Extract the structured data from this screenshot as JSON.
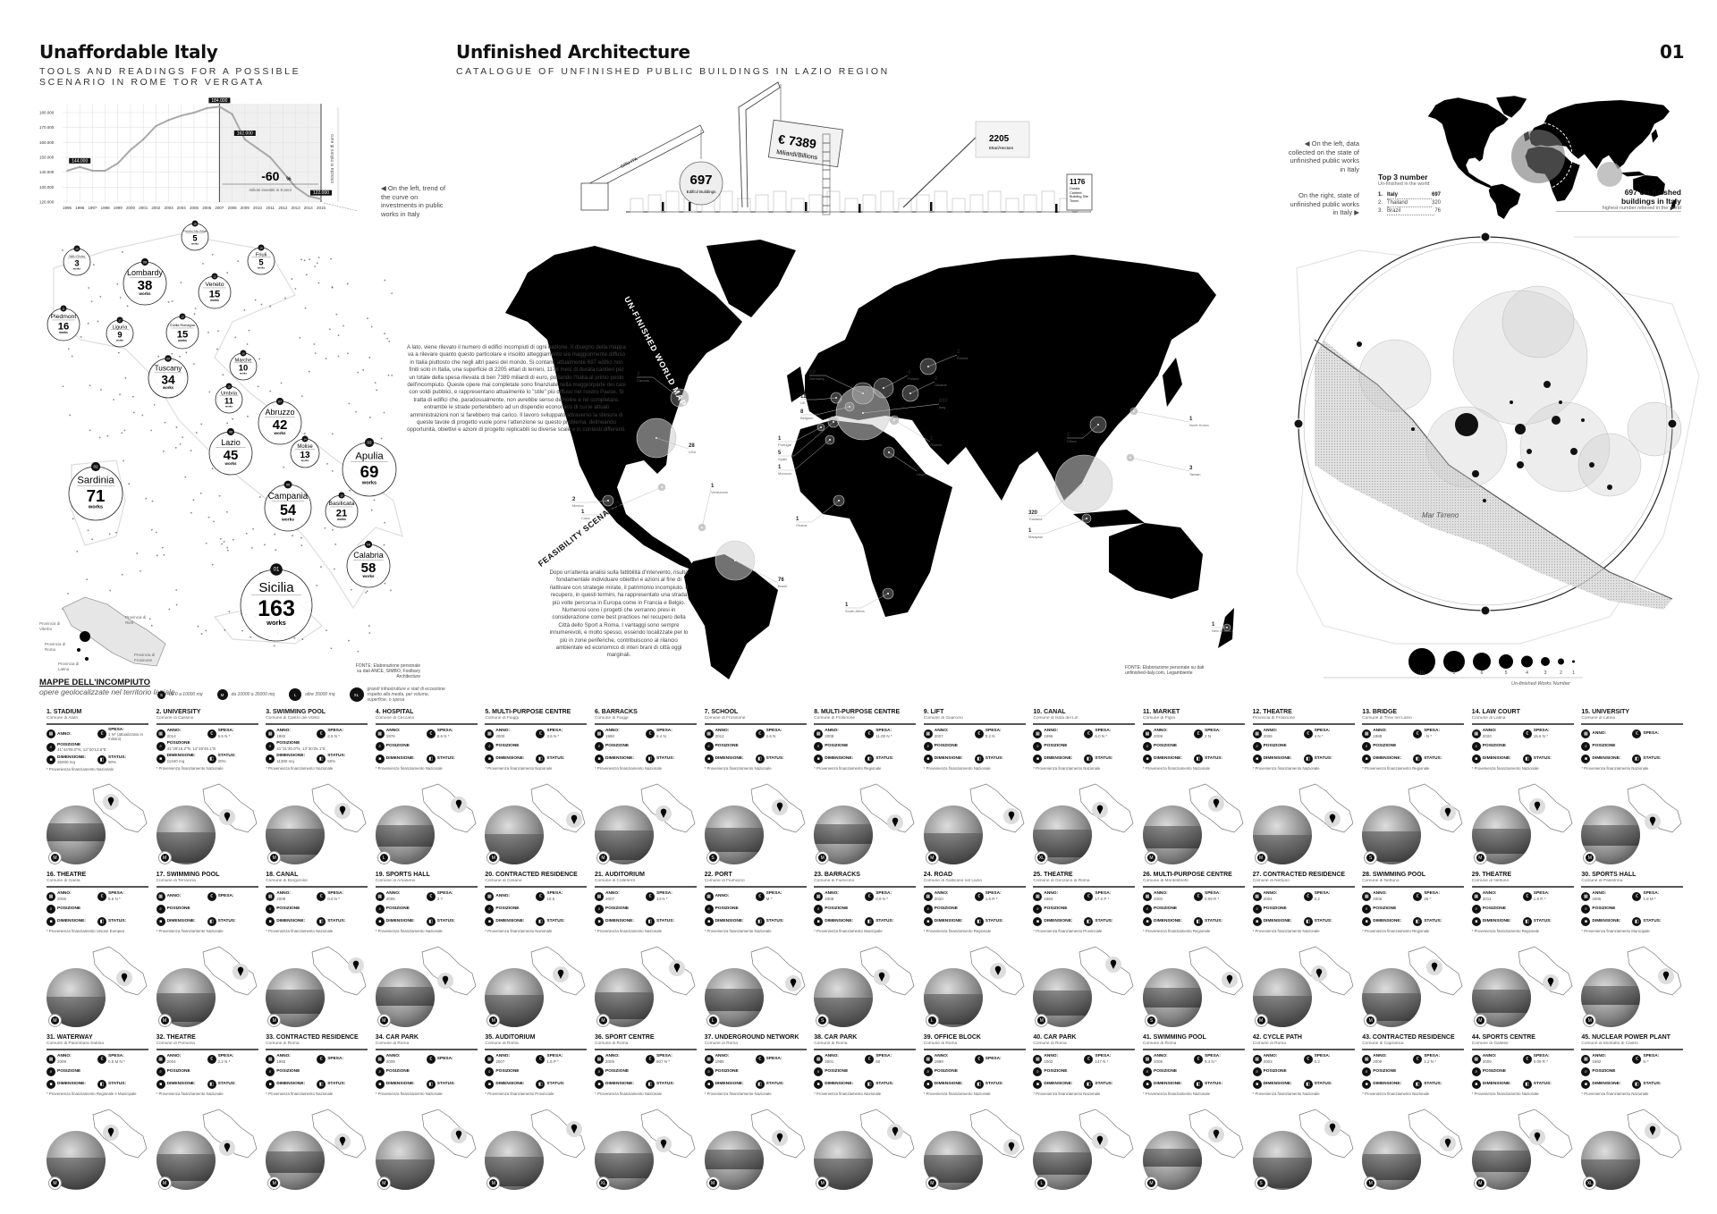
{
  "header": {
    "left_title": "Unaffordable Italy",
    "left_subtitle": "TOOLS AND READINGS FOR A POSSIBLE SCENARIO IN ROME TOR VERGATA",
    "center_title": "Unfinished Architecture",
    "center_subtitle": "CATALOGUE OF UNFINISHED PUBLIC BUILDINGS IN LAZIO REGION",
    "page_number": "01"
  },
  "chart_data": {
    "type": "line",
    "x": [
      1995,
      1996,
      1997,
      1998,
      1999,
      2000,
      2001,
      2002,
      2003,
      2004,
      2005,
      2006,
      2007,
      2008,
      2009,
      2010,
      2011,
      2012,
      2013,
      2014,
      2015
    ],
    "values": [
      141000,
      143500,
      141000,
      141000,
      146000,
      155000,
      162000,
      171000,
      175000,
      178000,
      180000,
      183000,
      184000,
      179000,
      162000,
      156000,
      150000,
      140000,
      130000,
      124000,
      122000
    ],
    "ylim": [
      120000,
      180000
    ],
    "y_ticks": [
      "120.000",
      "130.000",
      "140.000",
      "150.000",
      "160.000",
      "170.000",
      "180.000"
    ],
    "ylabel": "crescita in milioni di euro",
    "point_labels": [
      {
        "x": 1996,
        "label": "144.000"
      },
      {
        "x": 2007,
        "label": "184.000"
      },
      {
        "x": 2009,
        "label": "162.000"
      },
      {
        "x": 2015,
        "label": "122.000"
      }
    ],
    "annotation_value": "-60",
    "annotation_unit": "%",
    "annotation_text": "milioni investiti in 8 anni",
    "shaded_range": [
      2007,
      2015
    ],
    "grid": true,
    "line_color": "#aaaaaa"
  },
  "chart_note": "On the left, trend of the curve on investments in public works in Italy",
  "italy": {
    "works_label": "works",
    "regions": [
      {
        "rank": "20",
        "name": "Valle d'Aosta",
        "count": "3"
      },
      {
        "rank": "18",
        "name": "Trentino Alto-Adige",
        "count": "5"
      },
      {
        "rank": "19",
        "name": "Friuli",
        "count": "5"
      },
      {
        "rank": "08",
        "name": "Lombardy",
        "count": "38"
      },
      {
        "rank": "12",
        "name": "Veneto",
        "count": "15"
      },
      {
        "rank": "11",
        "name": "Piedmont",
        "count": "16"
      },
      {
        "rank": "17",
        "name": "Liguria",
        "count": "9"
      },
      {
        "rank": "13",
        "name": "Emilia Romagna",
        "count": "15"
      },
      {
        "rank": "09",
        "name": "Tuscany",
        "count": "34"
      },
      {
        "rank": "16",
        "name": "Marche",
        "count": "10"
      },
      {
        "rank": "15",
        "name": "Umbria",
        "count": "11"
      },
      {
        "rank": "07",
        "name": "Abruzzo",
        "count": "42"
      },
      {
        "rank": "06",
        "name": "Lazio",
        "count": "45"
      },
      {
        "rank": "14",
        "name": "Molise",
        "count": "13"
      },
      {
        "rank": "03",
        "name": "Apulia",
        "count": "69"
      },
      {
        "rank": "02",
        "name": "Sardinia",
        "count": "71"
      },
      {
        "rank": "05",
        "name": "Campania",
        "count": "54"
      },
      {
        "rank": "10",
        "name": "Basilicata",
        "count": "21"
      },
      {
        "rank": "04",
        "name": "Calabria",
        "count": "58"
      },
      {
        "rank": "01",
        "name": "Sicilia",
        "count": "163"
      }
    ],
    "lazio_provinces": [
      "Provincia di Viterbo",
      "Provincia di Rieti",
      "Provincia di Roma",
      "Provincia di Latina",
      "Provincia di Frosinone"
    ],
    "source": "FONTE: Elaborazione personale su dati ANCE, SIMBO, Foolbary Architecture"
  },
  "legend": {
    "title": "MAPPE DELL'INCOMPIUTO",
    "subtitle": "opere geolocalizzate nel territorio laziale.",
    "sizes": [
      {
        "badge": "S",
        "text": "da 0 a 10000 mq"
      },
      {
        "badge": "M",
        "text": "da 10000 a 35000 mq"
      },
      {
        "badge": "L",
        "text": "oltre 35000 mq"
      },
      {
        "badge": "XL",
        "text": "grandi infrastrutture e stati di eccezione rispetto alla media, per volume, superficie, o spesa"
      }
    ]
  },
  "construction": {
    "crane_label": "GRU-ITA",
    "buildings_value": "697",
    "buildings_label": "Edifici/ Buildings",
    "cost_value": "€ 7389",
    "cost_label": "Miliardi/Billions",
    "area_value": "2205",
    "area_label": "Ettari/Hectars",
    "duration_value": "1176",
    "duration_label": "Durata Cantieri/ Building Site Times"
  },
  "world_map": {
    "title": "UN-FINISHED WORLD MAP",
    "intro": "A lato, viene rilevato il numero di edifici incompiuti di ogni nazione. Il disegno della mappa va a rilevare quanto questo particolare e insolito atteggiamento sia maggiormente diffuso in Italia piuttosto che negli altri paesi del mondo. Si contano attualmente 697 edifici non finiti solo in Italia, una superficie di 2205 ettari di terreni, 1176 mesi di durata cantieri per un totale della spesa rilevata di ben 7389 miliardi di euro, portando l'Italia al primo posto dell'incompiuto. Queste opere mai completate sono finanziate nella maggiorparte dei casi con soldi pubblici, e rappresentano attualmente lo \"stile\" più diffuso nel nostro Paese. Si tratta di edifici che, paradossalmente, non avrebbe senso demolire e né completare, entrambe le strade porterebbero ad un dispendio economico di cui le attuali amministrazioni non si farebbero mai carico. Il lavoro sviluppato attraverso la stesura di queste tavole di progetto vuole porre l'attenzione su questo problema, delineando opportunità, obiettivi e azioni di progetto replicabili su diverse scale e in contesti differenti.",
    "feasibility_title": "FEASIBILITY SCENARIO",
    "feasibility_text": "Dopo un'attenta analisi sulla fattibilità d'intervento, risulta fondamentale individuare obiettivi e azioni al fine di riattivare con strategie mirate, il patrimonio incompiuto. Il recupero, in questi termini, ha rappresentato una strada più volte percorsa in Europa come in Francia e Belgio. Numerosi sono i progetti che verranno presi in considerazione come best practices nel recupero della Città dello Sport a Roma. I vantaggi sono sempre innumerevoli, e molto spesso, essendo localizzate per lo più in zone periferiche, contribuiscono al rilancio ambientale ed economico di interi brani di città oggi marginali.",
    "countries": [
      {
        "name": "Canada",
        "count": "3"
      },
      {
        "name": "USA",
        "count": "28"
      },
      {
        "name": "Mexico",
        "count": "2"
      },
      {
        "name": "Cuba",
        "count": "1"
      },
      {
        "name": "Venezuela",
        "count": "1"
      },
      {
        "name": "Brazil",
        "count": "76"
      },
      {
        "name": "Germany",
        "count": "10"
      },
      {
        "name": "UK",
        "count": "11"
      },
      {
        "name": "Belgium",
        "count": "8"
      },
      {
        "name": "Portugal",
        "count": "1"
      },
      {
        "name": "Spain",
        "count": "5"
      },
      {
        "name": "Morocco",
        "count": "1"
      },
      {
        "name": "Ghana",
        "count": "1"
      },
      {
        "name": "South Africa",
        "count": "1"
      },
      {
        "name": "Russia",
        "count": "2"
      },
      {
        "name": "Poland",
        "count": "4"
      },
      {
        "name": "Ukraine",
        "count": "2"
      },
      {
        "name": "Italy",
        "count": "697"
      },
      {
        "name": "Greece",
        "count": "1"
      },
      {
        "name": "Libya",
        "count": "1"
      },
      {
        "name": "China",
        "count": "1"
      },
      {
        "name": "North Korea",
        "count": "1"
      },
      {
        "name": "Taiwan",
        "count": "3"
      },
      {
        "name": "Thailand",
        "count": "320"
      },
      {
        "name": "Malaysia",
        "count": "1"
      },
      {
        "name": "New Zealand",
        "count": "1"
      }
    ],
    "source": "FONTE: Elaborazione personale su dati unfinished-italy.com, Legambiente"
  },
  "right_panel": {
    "left_note": "On the left, data collected on the state of unfinished public works in Italy",
    "right_note": "On the right, state of unfinished public works in Italy",
    "top3_title": "Top 3 number",
    "top3_subtitle": "Un-finished in the world",
    "top3": [
      {
        "rank": "1.",
        "country": "Italy",
        "value": "697"
      },
      {
        "rank": "2.",
        "country": "Thailand",
        "value": "320"
      },
      {
        "rank": "3.",
        "country": "Brazil",
        "value": "76"
      }
    ],
    "highlight_title": "697 Un-finished buildings in Italy",
    "highlight_sub": "highest number relieved in the world",
    "sea_label": "Mar Tirreno",
    "scale_values": [
      "10",
      "8",
      "6",
      "5",
      "4",
      "3",
      "2",
      "1"
    ],
    "scale_label": "Un-finished Works Number"
  },
  "card_labels": {
    "anno": "ANNO:",
    "spesa": "SPESA:",
    "posizione": "POSIZIONE",
    "dimensione": "DIMENSIONE:",
    "status": "STATUS:"
  },
  "cards": [
    {
      "title": "1. STADIUM",
      "comune": "Comune di Alatri",
      "anno": "",
      "spesa": "1 N* (attualizzato in milioni)",
      "posizione": "41°44'09.0\"N, 13°20'13.6\"E",
      "dimensione": "35000 mq",
      "status": "90%",
      "note": "* Provenienza finanziamento Nazionale",
      "size": "M"
    },
    {
      "title": "2. UNIVERSITY",
      "comune": "Comune di Cassino",
      "anno": "2014",
      "spesa": "6.5 N *",
      "posizione": "41°28'16.2\"N, 13°49'45.1\"E",
      "dimensione": "11340 mq",
      "status": "20%",
      "note": "* Provenienza finanziamento Nazionale",
      "size": "M"
    },
    {
      "title": "3. SWIMMING POOL",
      "comune": "Comune di Castro dei Volsci",
      "anno": "1992",
      "spesa": "2.5 N *",
      "posizione": "41°31'30.0\"N, 13°30'26.1\"E",
      "dimensione": "11380 mq",
      "status": "50%",
      "note": "* Provenienza finanziamento Nazionale",
      "size": "M"
    },
    {
      "title": "4. HOSPITAL",
      "comune": "Comune di Ceccano",
      "anno": "1976",
      "spesa": "8.6 N *",
      "note": "* Provenienza finanziamento Nazionale",
      "size": "L"
    },
    {
      "title": "5. MULTI-PURPOSE CENTRE",
      "comune": "Comune di Fiuggi",
      "anno": "2000",
      "spesa": "3.6 N *",
      "note": "* Provenienza finanziamento Nazionale",
      "size": "M"
    },
    {
      "title": "6. BARRACKS",
      "comune": "Comune di Fiuggi",
      "anno": "1990",
      "spesa": "8.4 N",
      "note": "* Provenienza finanziamento Nazionale",
      "size": "M"
    },
    {
      "title": "7. SCHOOL",
      "comune": "Comune di Frosinone",
      "anno": "2012",
      "spesa": "2.6 N",
      "note": "* Provenienza finanziamento Nazionale",
      "size": "S"
    },
    {
      "title": "8. MULTI-PURPOSE CENTRE",
      "comune": "Comune di Frosinone",
      "anno": "2008",
      "spesa": "11.00 N *",
      "note": "* Provenienza finanziamento Regionale",
      "size": "M"
    },
    {
      "title": "9. LIFT",
      "comune": "Comune di Guarcino",
      "anno": "2007",
      "spesa": "0.2 N",
      "note": "* Provenienza finanziamento Nazionale",
      "size": "M"
    },
    {
      "title": "10. CANAL",
      "comune": "Comune di Isola del Liri",
      "anno": "1996",
      "spesa": "6.0 N *",
      "note": "* Provenienza finanziamento Nazionale",
      "size": "XL"
    },
    {
      "title": "11. MARKET",
      "comune": "Comune di Piglio",
      "anno": "2009",
      "spesa": "2 N",
      "note": "* Provenienza finanziamento Nazionale",
      "size": "M"
    },
    {
      "title": "12. THEATRE",
      "comune": "Provincia di Frosinone",
      "anno": "2006",
      "spesa": "4 N *",
      "note": "* Provenienza finanziamento Nazionale",
      "size": "M"
    },
    {
      "title": "13. BRIDGE",
      "comune": "Comune di Trevi nel Lazio",
      "anno": "1988",
      "spesa": "- N *",
      "note": "* Provenienza finanziamento Regionale",
      "size": "S"
    },
    {
      "title": "14. LAW COURT",
      "comune": "Comune di Latina",
      "anno": "2020",
      "spesa": "15.6 N *",
      "note": "* Provenienza finanziamento Nazionale",
      "size": "M"
    },
    {
      "title": "15. UNIVERSITY",
      "comune": "Comune di Latina",
      "anno": "",
      "spesa": "",
      "note": "* Provenienza finanziamento Nazionale",
      "size": "M"
    },
    {
      "title": "16. THEATRE",
      "comune": "Comune di Gaeta",
      "anno": "2006",
      "spesa": "5.6 N *",
      "note": "* Provenienza finanziamento Unione Europea",
      "size": "M"
    },
    {
      "title": "17. SWIMMING POOL",
      "comune": "Comune di Terracina",
      "anno": "",
      "spesa": "",
      "note": "* Provenienza finanziamento Nazionale",
      "size": "M"
    },
    {
      "title": "18. CANAL",
      "comune": "Comune di Borgorose",
      "anno": "2009",
      "spesa": "0.0 N *",
      "note": "* Provenienza finanziamento Nazionale",
      "size": "M"
    },
    {
      "title": "19. SPORTS HALL",
      "comune": "Comune di Amaseno",
      "anno": "2006",
      "spesa": "3 ?",
      "note": "* Provenienza finanziamento Nazionale",
      "size": "M"
    },
    {
      "title": "20. CONTRACTED RESIDENCE",
      "comune": "Comune di Cesano",
      "anno": "",
      "spesa": "10.5",
      "note": "* Provenienza finanziamento Nazionale",
      "size": "M"
    },
    {
      "title": "21. AUDITORIUM",
      "comune": "Comune di Colleferro",
      "anno": "2007",
      "spesa": "14 N *",
      "note": "* Provenienza finanziamento Nazionale",
      "size": "M"
    },
    {
      "title": "22. PORT",
      "comune": "Comune di Fiumicino",
      "anno": "",
      "spesa": "M *",
      "note": "* Provenienza finanziamento Nazionale",
      "size": "L"
    },
    {
      "title": "23. BARRACKS",
      "comune": "Comune di Fiumicino",
      "anno": "2008",
      "spesa": "0.9 N *",
      "note": "* Provenienza finanziamento Municipale",
      "size": "S"
    },
    {
      "title": "24. ROAD",
      "comune": "Comune di Gallicano nel Lazio",
      "anno": "2010",
      "spesa": "1.6 R *",
      "note": "* Provenienza finanziamento Regionale",
      "size": "L"
    },
    {
      "title": "25. THEATRE",
      "comune": "Comune di Genzano di Roma",
      "anno": "1984",
      "spesa": "17.0 P *",
      "note": "* Provenienza finanziamento Provinciale",
      "size": "M"
    },
    {
      "title": "26. MULTI-PURPOSE CENTRE",
      "comune": "Comune di Montelibretti",
      "anno": "2000",
      "spesa": "0.09 R *",
      "note": "* Provenienza finanziamento Regionale",
      "size": "S"
    },
    {
      "title": "27. CONTRACTED RESIDENCE",
      "comune": "Comune di Nettuno",
      "anno": "2004",
      "spesa": "0.2",
      "note": "* Provenienza finanziamento Nazionale",
      "size": "M"
    },
    {
      "title": "28. SWIMMING POOL",
      "comune": "Comune di Nettuno",
      "anno": "2006",
      "spesa": "26 *",
      "note": "* Provenienza finanziamento Regionale",
      "size": "M"
    },
    {
      "title": "29. THEATRE",
      "comune": "Comune di Nettuno",
      "anno": "2011",
      "spesa": "1.8 R *",
      "note": "* Provenienza finanziamento Regionale",
      "size": "M"
    },
    {
      "title": "30. SPORTS HALL",
      "comune": "Comune di Palestrina",
      "anno": "2005",
      "spesa": "1.8 M *",
      "note": "* Provenienza finanziamento Municipale",
      "size": "M"
    },
    {
      "title": "31. WATERWAY",
      "comune": "Comune di Palombara Sabina",
      "anno": "2009",
      "spesa": "0.5 M N *",
      "note": "* Provenienza finanziamento Regionale e Municipale",
      "size": "M"
    },
    {
      "title": "32. THEATRE",
      "comune": "Comune di Pomezia",
      "anno": "2004",
      "spesa": "2.2 N *",
      "note": "* Provenienza finanziamento Nazionale",
      "size": "M"
    },
    {
      "title": "33. CONTRACTED RESIDENCE",
      "comune": "Comune di Roma",
      "anno": "1992",
      "spesa": "",
      "note": "* Provenienza finanziamento Nazionale",
      "size": "M"
    },
    {
      "title": "34. CAR PARK",
      "comune": "Comune di Roma",
      "anno": "2008",
      "spesa": "",
      "note": "* Provenienza finanziamento Nazionale",
      "size": "M"
    },
    {
      "title": "35. AUDITORIUM",
      "comune": "Comune di Roma",
      "anno": "2007",
      "spesa": "1.5 P *",
      "note": "* Provenienza finanziamento Provinciale",
      "size": "M"
    },
    {
      "title": "36. SPORT CENTRE",
      "comune": "Comune di Roma",
      "anno": "2005",
      "spesa": "607 N *",
      "note": "* Provenienza finanziamento Nazionale",
      "size": "XL"
    },
    {
      "title": "37. UNDERGROUND NETWORK",
      "comune": "Comune di Roma",
      "anno": "1995",
      "spesa": "",
      "note": "* Provenienza finanziamento Nazionale",
      "size": "M"
    },
    {
      "title": "38. CAR PARK",
      "comune": "Comune di Roma",
      "anno": "2001",
      "spesa": "50",
      "note": "* Provenienza finanziamento Nazionale",
      "size": "M"
    },
    {
      "title": "39. OFFICE BLOCK",
      "comune": "Comune di Roma",
      "anno": "1999",
      "spesa": "",
      "note": "* Provenienza finanziamento Nazionale",
      "size": "M"
    },
    {
      "title": "40. CAR PARK",
      "comune": "Comune di Roma",
      "anno": "2002",
      "spesa": "147 N *",
      "note": "* Provenienza finanziamento Nazionale",
      "size": "L"
    },
    {
      "title": "41. SWIMMING POOL",
      "comune": "Comune di Roma",
      "anno": "2009",
      "spesa": "6.4 N *",
      "note": "* Provenienza finanziamento Nazionale",
      "size": "M"
    },
    {
      "title": "42. CYCLE PATH",
      "comune": "Comune di Roma",
      "anno": "2003",
      "spesa": "0.2",
      "note": "* Provenienza finanziamento Nazionale",
      "size": "S"
    },
    {
      "title": "43. CONTRACTED RESIDENCE",
      "comune": "Comune di Capranica",
      "anno": "2009",
      "spesa": "1.2 N *",
      "note": "* Provenienza finanziamento Nazionale",
      "size": "M"
    },
    {
      "title": "44. SPORTS CENTRE",
      "comune": "Comune di Gallese",
      "anno": "2009",
      "spesa": "0.09 R *",
      "note": "* Provenienza finanziamento Nazionale",
      "size": "M"
    },
    {
      "title": "45. NUCLEAR POWER PLANT",
      "comune": "Comune di Montalto di Castro",
      "anno": "1982",
      "spesa": "N *",
      "note": "* Provenienza finanziamento Nazionale",
      "size": "XL"
    }
  ]
}
